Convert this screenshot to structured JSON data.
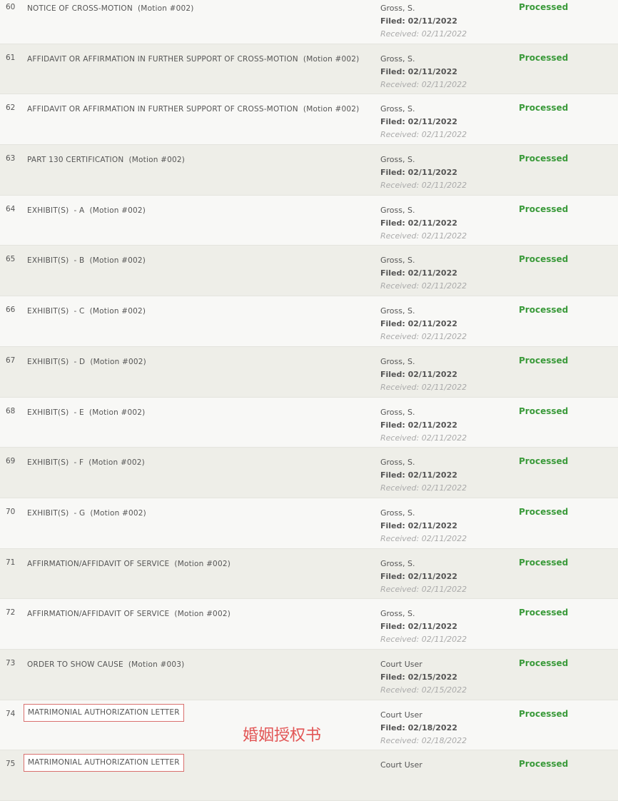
{
  "annotation": "婚姻授权书",
  "rows": [
    {
      "num": "60",
      "document": "NOTICE OF CROSS-MOTION  (Motion #002)",
      "filer": "Gross, S.",
      "filed": "Filed: 02/11/2022",
      "received": "Received: 02/11/2022",
      "status": "Processed"
    },
    {
      "num": "61",
      "document": "AFFIDAVIT OR AFFIRMATION IN FURTHER SUPPORT OF CROSS-MOTION  (Motion #002)",
      "filer": "Gross, S.",
      "filed": "Filed: 02/11/2022",
      "received": "Received: 02/11/2022",
      "status": "Processed"
    },
    {
      "num": "62",
      "document": "AFFIDAVIT OR AFFIRMATION IN FURTHER SUPPORT OF CROSS-MOTION  (Motion #002)",
      "filer": "Gross, S.",
      "filed": "Filed: 02/11/2022",
      "received": "Received: 02/11/2022",
      "status": "Processed"
    },
    {
      "num": "63",
      "document": "PART 130 CERTIFICATION  (Motion #002)",
      "filer": "Gross, S.",
      "filed": "Filed: 02/11/2022",
      "received": "Received: 02/11/2022",
      "status": "Processed"
    },
    {
      "num": "64",
      "document": "EXHIBIT(S)  - A  (Motion #002)",
      "filer": "Gross, S.",
      "filed": "Filed: 02/11/2022",
      "received": "Received: 02/11/2022",
      "status": "Processed"
    },
    {
      "num": "65",
      "document": "EXHIBIT(S)  - B  (Motion #002)",
      "filer": "Gross, S.",
      "filed": "Filed: 02/11/2022",
      "received": "Received: 02/11/2022",
      "status": "Processed"
    },
    {
      "num": "66",
      "document": "EXHIBIT(S)  - C  (Motion #002)",
      "filer": "Gross, S.",
      "filed": "Filed: 02/11/2022",
      "received": "Received: 02/11/2022",
      "status": "Processed"
    },
    {
      "num": "67",
      "document": "EXHIBIT(S)  - D  (Motion #002)",
      "filer": "Gross, S.",
      "filed": "Filed: 02/11/2022",
      "received": "Received: 02/11/2022",
      "status": "Processed"
    },
    {
      "num": "68",
      "document": "EXHIBIT(S)  - E  (Motion #002)",
      "filer": "Gross, S.",
      "filed": "Filed: 02/11/2022",
      "received": "Received: 02/11/2022",
      "status": "Processed"
    },
    {
      "num": "69",
      "document": "EXHIBIT(S)  - F  (Motion #002)",
      "filer": "Gross, S.",
      "filed": "Filed: 02/11/2022",
      "received": "Received: 02/11/2022",
      "status": "Processed"
    },
    {
      "num": "70",
      "document": "EXHIBIT(S)  - G  (Motion #002)",
      "filer": "Gross, S.",
      "filed": "Filed: 02/11/2022",
      "received": "Received: 02/11/2022",
      "status": "Processed"
    },
    {
      "num": "71",
      "document": "AFFIRMATION/AFFIDAVIT OF SERVICE  (Motion #002)",
      "filer": "Gross, S.",
      "filed": "Filed: 02/11/2022",
      "received": "Received: 02/11/2022",
      "status": "Processed"
    },
    {
      "num": "72",
      "document": "AFFIRMATION/AFFIDAVIT OF SERVICE  (Motion #002)",
      "filer": "Gross, S.",
      "filed": "Filed: 02/11/2022",
      "received": "Received: 02/11/2022",
      "status": "Processed"
    },
    {
      "num": "73",
      "document": "ORDER TO SHOW CAUSE  (Motion #003)",
      "filer": "Court User",
      "filed": "Filed: 02/15/2022",
      "received": "Received: 02/15/2022",
      "status": "Processed"
    },
    {
      "num": "74",
      "document": "MATRIMONIAL AUTHORIZATION LETTER",
      "boxed": true,
      "filer": "Court User",
      "filed": "Filed: 02/18/2022",
      "received": "Received: 02/18/2022",
      "status": "Processed"
    },
    {
      "num": "75",
      "document": "MATRIMONIAL AUTHORIZATION LETTER",
      "boxed": true,
      "filer": "Court User",
      "status": "Processed"
    }
  ]
}
